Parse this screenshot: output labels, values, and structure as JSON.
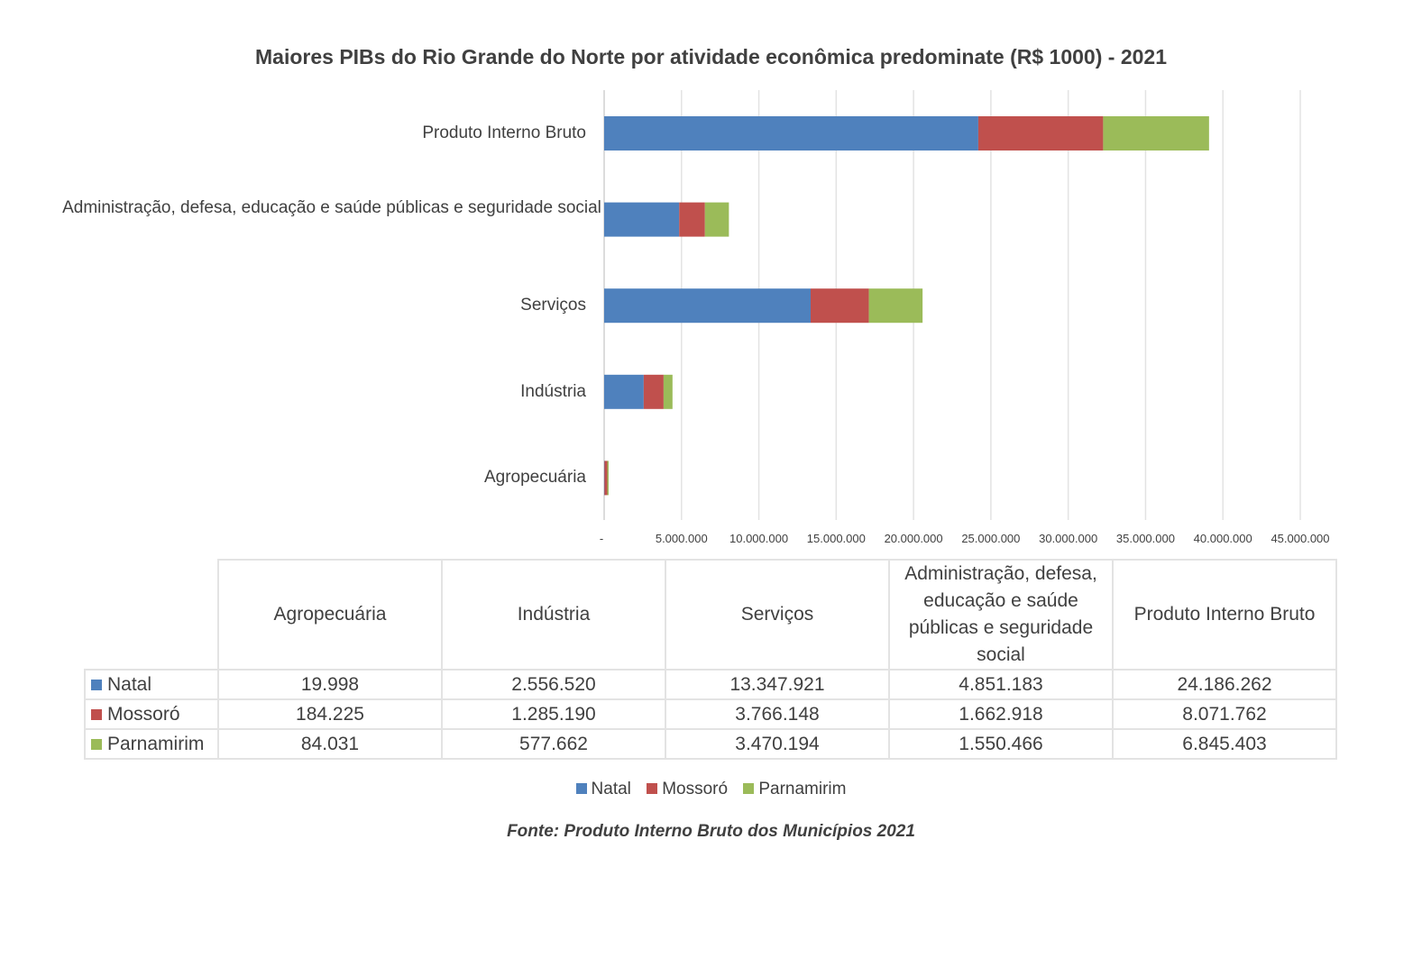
{
  "chart_data": {
    "type": "bar",
    "orientation": "horizontal",
    "stacked": true,
    "title": "Maiores PIBs do Rio Grande do Norte por atividade econômica predominate (R$ 1000) - 2021",
    "categories": [
      "Agropecuária",
      "Indústria",
      "Serviços",
      "Administração, defesa, educação e saúde públicas e seguridade social",
      "Produto Interno Bruto"
    ],
    "axis_categories": [
      "Produto Interno Bruto",
      "Administração, defesa, educação e saúde públicas e seguridade social",
      "Serviços",
      "Indústria",
      "Agropecuária"
    ],
    "series": [
      {
        "name": "Natal",
        "color": "#4f81bd",
        "values": [
          19998,
          2556520,
          13347921,
          4851183,
          24186262
        ],
        "labels": [
          "19.998",
          "2.556.520",
          "13.347.921",
          "4.851.183",
          "24.186.262"
        ]
      },
      {
        "name": "Mossoró",
        "color": "#c0504d",
        "values": [
          184225,
          1285190,
          3766148,
          1662918,
          8071762
        ],
        "labels": [
          "184.225",
          "1.285.190",
          "3.766.148",
          "1.662.918",
          "8.071.762"
        ]
      },
      {
        "name": "Parnamirim",
        "color": "#9bbb59",
        "values": [
          84031,
          577662,
          3470194,
          1550466,
          6845403
        ],
        "labels": [
          "84.031",
          "577.662",
          "3.470.194",
          "1.550.466",
          "6.845.403"
        ]
      }
    ],
    "xlim": [
      0,
      45000000
    ],
    "x_ticks": [
      0,
      5000000,
      10000000,
      15000000,
      20000000,
      25000000,
      30000000,
      35000000,
      40000000,
      45000000
    ],
    "x_tick_labels": [
      "-",
      "5.000.000",
      "10.000.000",
      "15.000.000",
      "20.000.000",
      "25.000.000",
      "30.000.000",
      "35.000.000",
      "40.000.000",
      "45.000.000"
    ],
    "grid": true,
    "legend_position": "bottom",
    "data_table": true
  },
  "source_note": "Fonte: Produto Interno Bruto dos Municípios 2021"
}
